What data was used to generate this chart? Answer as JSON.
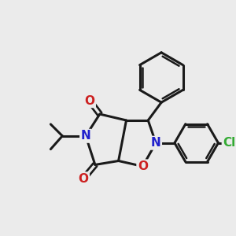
{
  "background_color": "#ebebeb",
  "bond_color": "#1a1a1a",
  "bond_width": 2.2,
  "atom_colors": {
    "N": "#2020cc",
    "O": "#cc2020",
    "Cl": "#33aa33",
    "C": "#1a1a1a"
  },
  "font_size_atoms": 11,
  "font_size_labels": 9
}
